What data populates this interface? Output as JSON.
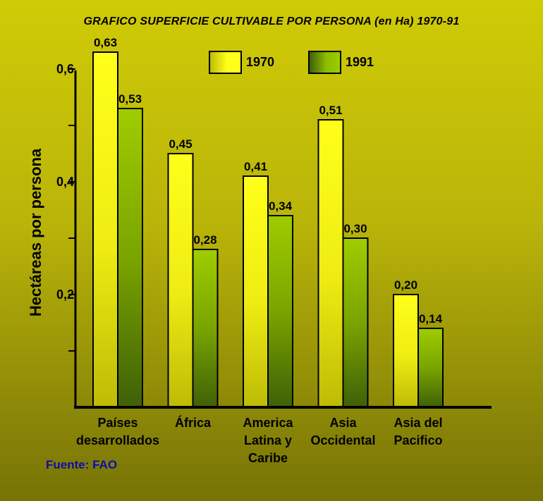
{
  "colors": {
    "series_1970_light": "#ffff1a",
    "series_1970_dark": "#bdbb06",
    "series_1991_light": "#9fcc00",
    "series_1991_dark": "#3f6008",
    "source_text": "#0c0ca8"
  },
  "source_note": "Fuente: FAO",
  "chart_data": {
    "type": "bar",
    "title": "GRAFICO SUPERFICIE CULTIVABLE POR PERSONA (en Ha) 1970-91",
    "ylabel": "Hectáreas por persona",
    "xlabel": "",
    "ylim": [
      0,
      0.65
    ],
    "yticks": [
      0.2,
      0.4,
      0.6
    ],
    "ytick_labels": [
      "0,2",
      "0,4",
      "0,6"
    ],
    "ytick_minor": [
      0.1,
      0.3,
      0.5
    ],
    "categories": [
      [
        "Países",
        "desarrollados"
      ],
      [
        "África"
      ],
      [
        "America",
        "Latina y",
        "Caribe"
      ],
      [
        "Asia",
        "Occidental"
      ],
      [
        "Asia del",
        "Pacifico"
      ]
    ],
    "series": [
      {
        "name": "1970",
        "values": [
          0.63,
          0.45,
          0.41,
          0.51,
          0.2
        ],
        "value_labels": [
          "0,63",
          "0,45",
          "0,41",
          "0,51",
          "0,20"
        ]
      },
      {
        "name": "1991",
        "values": [
          0.53,
          0.28,
          0.34,
          0.3,
          0.14
        ],
        "value_labels": [
          "0,53",
          "0,28",
          "0,34",
          "0,30",
          "0,14"
        ]
      }
    ],
    "legend_position": "top",
    "grid": false
  }
}
